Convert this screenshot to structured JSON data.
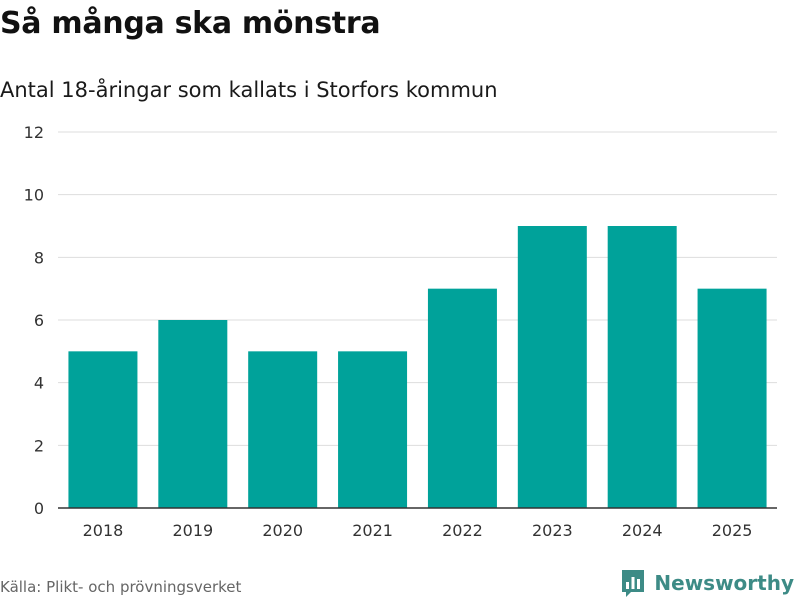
{
  "title": "Så många ska mönstra",
  "subtitle": "Antal 18-åringar som kallats i Storfors kommun",
  "source": "Källa: Plikt- och prövningsverket",
  "brand": {
    "name": "Newsworthy",
    "icon": "newsworthy-logo-icon"
  },
  "colors": {
    "bar": "#00a29a",
    "grid": "#dddddd",
    "axis": "#333333",
    "brand": "#3d8b86"
  },
  "chart_data": {
    "type": "bar",
    "title": "Så många ska mönstra",
    "subtitle": "Antal 18-åringar som kallats i Storfors kommun",
    "categories": [
      "2018",
      "2019",
      "2020",
      "2021",
      "2022",
      "2023",
      "2024",
      "2025"
    ],
    "values": [
      5,
      6,
      5,
      5,
      7,
      9,
      9,
      7
    ],
    "xlabel": "",
    "ylabel": "",
    "ylim": [
      0,
      12
    ],
    "yticks": [
      0,
      2,
      4,
      6,
      8,
      10,
      12
    ],
    "grid": true,
    "legend": "none"
  }
}
